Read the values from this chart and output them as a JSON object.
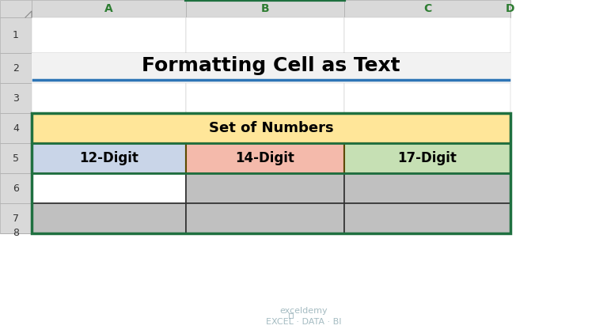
{
  "title": "Formatting Cell as Text",
  "title_fontsize": 18,
  "title_bold": true,
  "header_text": "Set of Numbers",
  "col_headers": [
    "12-Digit",
    "14-Digit",
    "17-Digit"
  ],
  "col_header_colors": [
    "#C9D5E8",
    "#F4BAAB",
    "#C6E0B4"
  ],
  "header_bg": "#FFE699",
  "data_rows": 3,
  "col1_row1_bg": "#FFFFFF",
  "data_bg": "#C0C0C0",
  "border_color": "#1F7040",
  "title_line_color": "#2E75B6",
  "excel_col_headers": [
    "A",
    "B",
    "C",
    "D"
  ],
  "excel_row_headers": [
    "1",
    "2",
    "3",
    "4",
    "5",
    "6",
    "7",
    "8"
  ],
  "excel_header_bg": "#D9D9D9",
  "excel_header_text": "#2E7D32",
  "bg_color": "#FFFFFF",
  "watermark_text": "exceldemy\nEXCEL · DATA · BI",
  "watermark_color": "#7F9FA8"
}
